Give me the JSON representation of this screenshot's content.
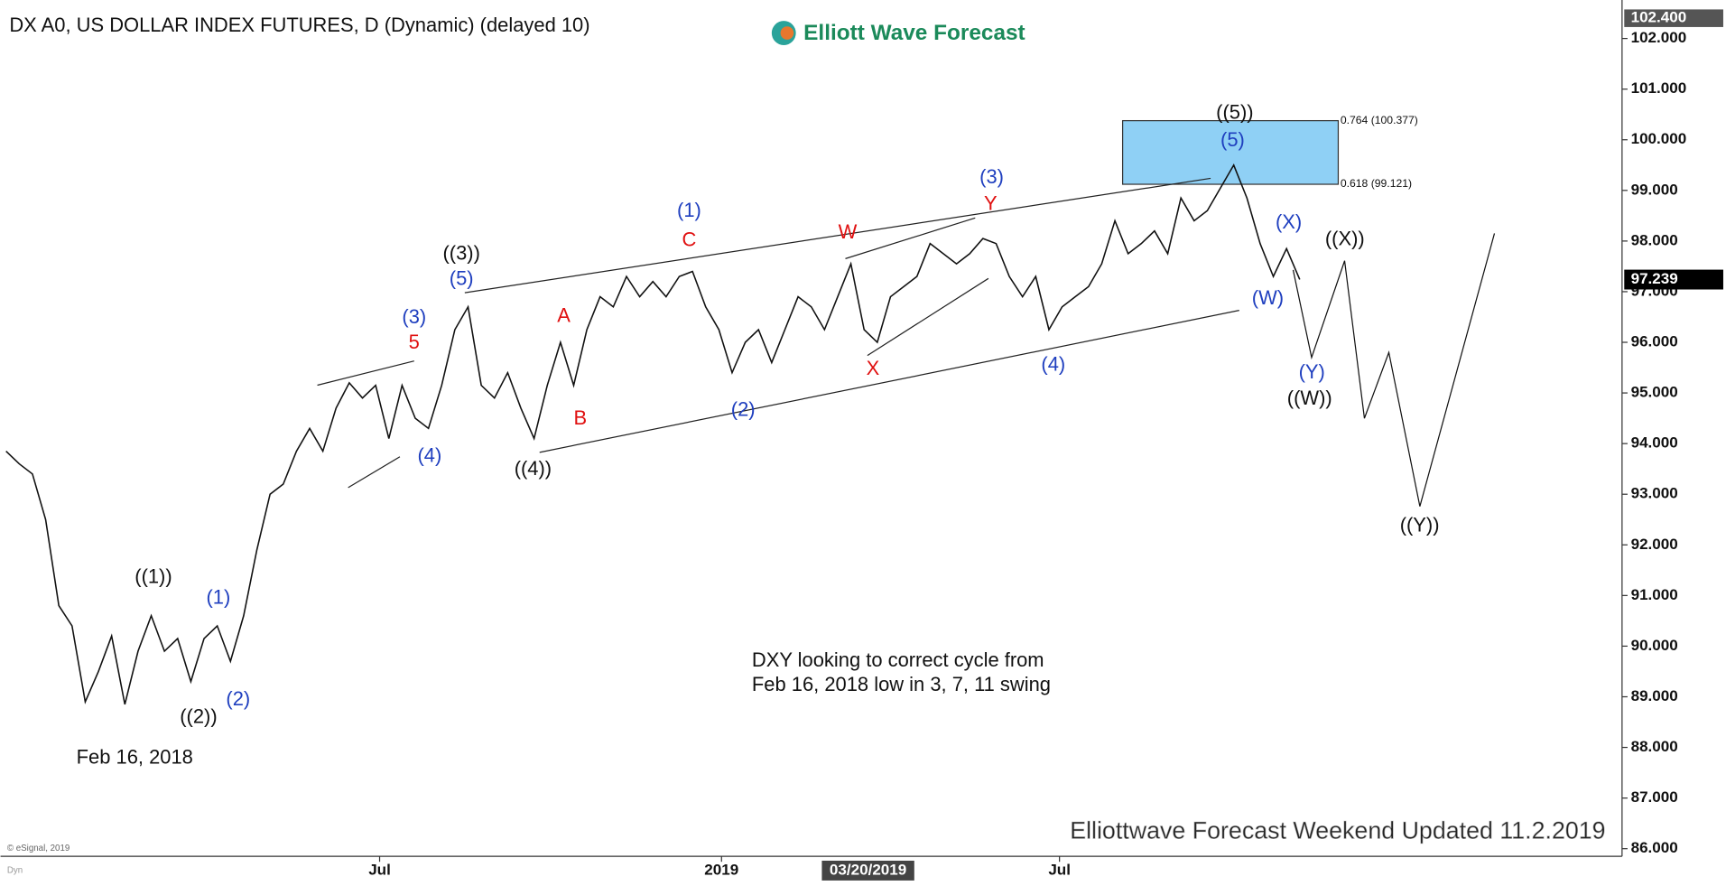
{
  "chart_data": {
    "type": "line",
    "title": "DX A0, US DOLLAR INDEX FUTURES, D (Dynamic) (delayed 10)",
    "brand": "Elliott Wave Forecast",
    "copyright": "© eSignal, 2019",
    "mode_label": "Dyn",
    "footer": "Elliottwave Forecast Weekend Updated 11.2.2019",
    "note": [
      "DXY looking to correct cycle from",
      "Feb 16, 2018 low in 3, 7, 11 swing"
    ],
    "cursor_date": "03/20/2019",
    "xlim": [
      0,
      122
    ],
    "xticks": [
      {
        "value": 28.3,
        "label": "Jul"
      },
      {
        "value": 54.2,
        "label": "2019"
      },
      {
        "value": 79.8,
        "label": "Jul"
      }
    ],
    "cursor_x": 65.3,
    "ylim": [
      85.85,
      102.76
    ],
    "yticks": [
      {
        "value": 86,
        "label": "86.000"
      },
      {
        "value": 87,
        "label": "87.000"
      },
      {
        "value": 88,
        "label": "88.000"
      },
      {
        "value": 89,
        "label": "89.000"
      },
      {
        "value": 90,
        "label": "90.000"
      },
      {
        "value": 91,
        "label": "91.000"
      },
      {
        "value": 92,
        "label": "92.000"
      },
      {
        "value": 93,
        "label": "93.000"
      },
      {
        "value": 94,
        "label": "94.000"
      },
      {
        "value": 95,
        "label": "95.000"
      },
      {
        "value": 96,
        "label": "96.000"
      },
      {
        "value": 97,
        "label": "97.000"
      },
      {
        "value": 98,
        "label": "98.000"
      },
      {
        "value": 99,
        "label": "99.000"
      },
      {
        "value": 100,
        "label": "100.000"
      },
      {
        "value": 101,
        "label": "101.000"
      },
      {
        "value": 102,
        "label": "102.000"
      }
    ],
    "high_label": {
      "value": 102.4,
      "label": "102.400"
    },
    "last_price": 97.239,
    "fib_levels": [
      {
        "value": 100.377,
        "label": "0.764 (100.377)"
      },
      {
        "value": 99.121,
        "label": "0.618 (99.121)"
      }
    ],
    "fib_color": "#8fd0f5",
    "series": [
      {
        "color": "#111111",
        "values": [
          93.85,
          93.6,
          93.4,
          92.5,
          90.8,
          90.4,
          88.9,
          89.5,
          90.2,
          88.85,
          89.9,
          90.6,
          89.9,
          90.15,
          89.3,
          90.15,
          90.4,
          89.7,
          90.6,
          91.9,
          93.0,
          93.2,
          93.85,
          94.3,
          93.85,
          94.7,
          95.2,
          94.9,
          95.15,
          94.1,
          95.15,
          94.5,
          94.3,
          95.15,
          96.25,
          96.7,
          95.15,
          94.9,
          95.4,
          94.7,
          94.1,
          95.15,
          96.0,
          95.15,
          96.25,
          96.9,
          96.7,
          97.3,
          96.9,
          97.2,
          96.9,
          97.3,
          97.4,
          96.7,
          96.25,
          95.4,
          96.0,
          96.25,
          95.6,
          96.25,
          96.9,
          96.7,
          96.25,
          96.9,
          97.55,
          96.25,
          96.0,
          96.9,
          97.1,
          97.3,
          97.95,
          97.75,
          97.55,
          97.75,
          98.05,
          97.95,
          97.3,
          96.9,
          97.3,
          96.25,
          96.7,
          96.9,
          97.1,
          97.55,
          98.4,
          97.75,
          97.95,
          98.2,
          97.75,
          98.85,
          98.4,
          98.6,
          99.05,
          99.5,
          98.85,
          97.95,
          97.3,
          97.85,
          97.24
        ]
      },
      {
        "color": "#111111",
        "x": [
          97.5,
          98.9,
          101.4,
          102.9,
          104.75,
          107.1,
          112.75
        ],
        "values": [
          97.43,
          95.7,
          97.61,
          94.5,
          95.8,
          92.76,
          98.15
        ]
      }
    ],
    "annotations": [
      {
        "text": "((1))",
        "color": "#111111"
      },
      {
        "text": "((2))",
        "color": "#111111"
      },
      {
        "text": "(1)",
        "color": "#1f3fbf"
      },
      {
        "text": "(2)",
        "color": "#1f3fbf"
      },
      {
        "text": "Feb 16, 2018",
        "color": "#111111"
      },
      {
        "text": "(3)",
        "color": "#1f3fbf"
      },
      {
        "text": "5",
        "color": "#e01010"
      },
      {
        "text": "(4)",
        "color": "#1f3fbf"
      },
      {
        "text": "((3))",
        "color": "#111111"
      },
      {
        "text": "(5)",
        "color": "#1f3fbf"
      },
      {
        "text": "((4))",
        "color": "#111111"
      },
      {
        "text": "A",
        "color": "#e01010"
      },
      {
        "text": "B",
        "color": "#e01010"
      },
      {
        "text": "(1)",
        "color": "#1f3fbf"
      },
      {
        "text": "C",
        "color": "#e01010"
      },
      {
        "text": "(2)",
        "color": "#1f3fbf"
      },
      {
        "text": "W",
        "color": "#e01010"
      },
      {
        "text": "X",
        "color": "#e01010"
      },
      {
        "text": "(3)",
        "color": "#1f3fbf"
      },
      {
        "text": "Y",
        "color": "#e01010"
      },
      {
        "text": "(4)",
        "color": "#1f3fbf"
      },
      {
        "text": "((5))",
        "color": "#111111"
      },
      {
        "text": "(5)",
        "color": "#1f3fbf"
      },
      {
        "text": "(X)",
        "color": "#1f3fbf"
      },
      {
        "text": "(W)",
        "color": "#1f3fbf"
      },
      {
        "text": "((X))",
        "color": "#111111"
      },
      {
        "text": "(Y)",
        "color": "#1f3fbf"
      },
      {
        "text": "((W))",
        "color": "#111111"
      },
      {
        "text": "((Y))",
        "color": "#111111"
      }
    ]
  }
}
